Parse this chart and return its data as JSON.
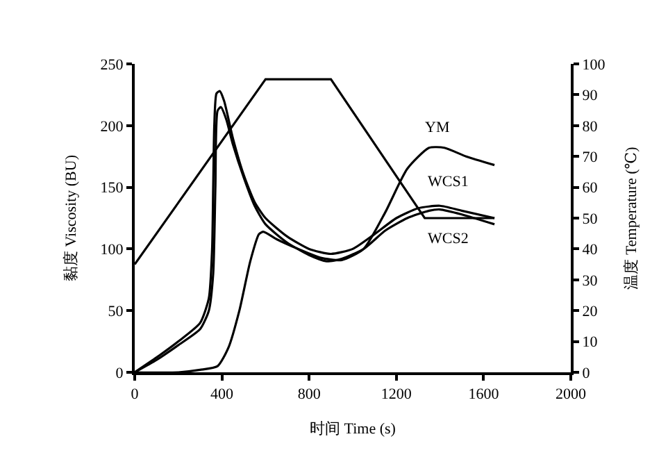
{
  "chart_data": {
    "type": "line",
    "xlabel": "时间 Time (s)",
    "ylabel": "黏度 Viscosity (BU)",
    "y2label": "温度 Temperature (℃)",
    "xlim": [
      0,
      2000
    ],
    "xticks": [
      0,
      400,
      800,
      1200,
      1600,
      2000
    ],
    "ylim": [
      0,
      250
    ],
    "yticks": [
      0,
      50,
      100,
      150,
      200,
      250
    ],
    "y2lim": [
      0,
      100
    ],
    "y2ticks": [
      0,
      10,
      20,
      30,
      40,
      50,
      60,
      70,
      80,
      90,
      100
    ],
    "legend": false,
    "marker": "none",
    "line_style": "solid",
    "series": [
      {
        "name": "YM",
        "color": "#000000",
        "x": [
          0,
          200,
          300,
          380,
          430,
          480,
          530,
          570,
          590,
          650,
          750,
          850,
          950,
          1050,
          1150,
          1250,
          1350,
          1420,
          1520,
          1650
        ],
        "values": [
          0,
          0,
          2,
          5,
          20,
          50,
          90,
          112,
          114,
          108,
          100,
          93,
          91,
          100,
          130,
          165,
          182,
          182,
          175,
          168
        ]
      },
      {
        "name": "WCS1",
        "color": "#000000",
        "x": [
          0,
          100,
          200,
          300,
          340,
          355,
          360,
          365,
          375,
          390,
          410,
          450,
          500,
          550,
          600,
          700,
          800,
          900,
          1000,
          1100,
          1200,
          1300,
          1400,
          1500,
          1650
        ],
        "values": [
          0,
          12,
          25,
          40,
          60,
          100,
          150,
          200,
          226,
          228,
          220,
          190,
          160,
          138,
          125,
          110,
          100,
          96,
          100,
          112,
          125,
          133,
          135,
          131,
          125
        ]
      },
      {
        "name": "WCS2",
        "color": "#000000",
        "x": [
          0,
          100,
          200,
          300,
          340,
          360,
          370,
          380,
          395,
          420,
          450,
          500,
          550,
          600,
          700,
          800,
          880,
          950,
          1050,
          1150,
          1250,
          1350,
          1400,
          1500,
          1650
        ],
        "values": [
          0,
          10,
          22,
          35,
          50,
          80,
          150,
          212,
          215,
          205,
          185,
          158,
          135,
          120,
          105,
          95,
          90,
          92,
          100,
          115,
          125,
          131,
          132,
          128,
          120
        ]
      },
      {
        "color": "#000000",
        "axis": "y2",
        "x": [
          0,
          600,
          900,
          1330,
          1650
        ],
        "values": [
          35,
          95,
          95,
          50,
          50
        ]
      }
    ]
  }
}
